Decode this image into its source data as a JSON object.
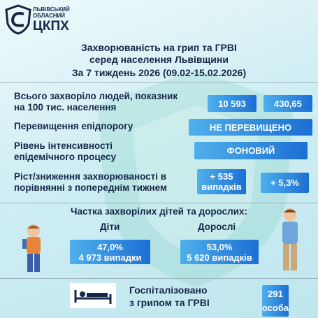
{
  "logo": {
    "line1": "ЛЬВІВСЬКИЙ",
    "line2": "ОБЛАСНИЙ",
    "name": "ЦКПХ"
  },
  "header": {
    "title": [
      "Захворюваність на грип та ГРВІ",
      "серед населення Львівщини"
    ],
    "period": "За 7 тиждень 2026 (09.02-15.02.2026)"
  },
  "rows": [
    {
      "label": [
        "Всього захворіло людей, показник",
        "на 100 тис. населення"
      ],
      "values": [
        [
          "10 593"
        ],
        [
          "430,65"
        ]
      ]
    },
    {
      "label": [
        "Перевищення епідпорогу"
      ],
      "values": [
        [
          "НЕ ПЕРЕВИЩЕНО"
        ]
      ]
    },
    {
      "label": [
        "Рівень інтенсивності",
        "епідемічного процесу"
      ],
      "values": [
        [
          "ФОНОВИЙ"
        ]
      ]
    },
    {
      "label": [
        "Ріст/зниження захворюваності  в",
        "порівнянні з попереднім тижнем"
      ],
      "values": [
        [
          "+ 535",
          "випадків"
        ],
        [
          "+ 5,3%"
        ]
      ]
    }
  ],
  "share": {
    "title": "Частка захворілих дітей та дорослих:",
    "children": {
      "label": "Діти",
      "percent": "47,0%",
      "cases": "4 973 випадки"
    },
    "adults": {
      "label": "Дорослі",
      "percent": "53,0%",
      "cases": "5 620 випадків"
    }
  },
  "hospitalized": {
    "label": [
      "Госпіталізовано",
      "з грипом та ГРВІ"
    ],
    "value": [
      "291",
      "особа"
    ]
  }
}
